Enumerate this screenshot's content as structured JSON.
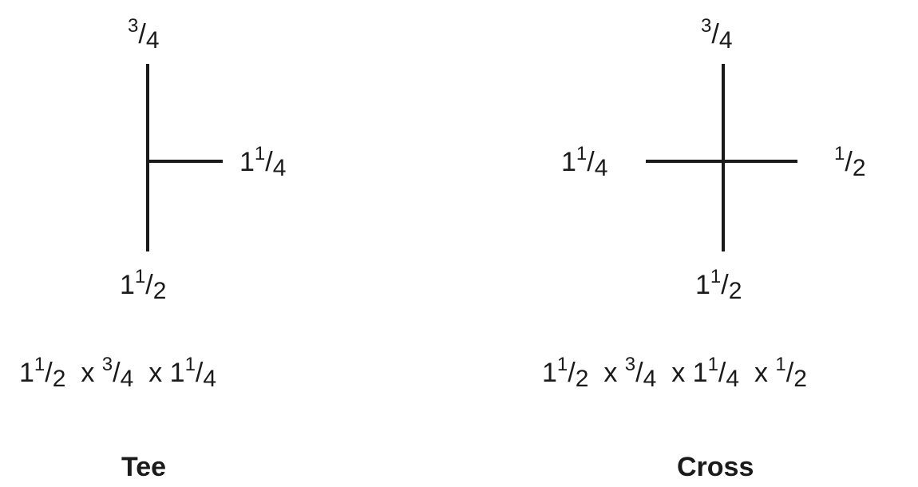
{
  "tee": {
    "top_label": {
      "num": "3",
      "den": "4"
    },
    "right_label": {
      "whole": "1",
      "num": "1",
      "den": "4"
    },
    "bottom_label": {
      "whole": "1",
      "num": "1",
      "den": "2"
    },
    "size_spec": [
      {
        "whole": "1",
        "num": "1",
        "den": "2"
      },
      {
        "whole": "",
        "num": "3",
        "den": "4"
      },
      {
        "whole": "1",
        "num": "1",
        "den": "4"
      }
    ],
    "times": "x",
    "caption": "Tee"
  },
  "cross": {
    "top_label": {
      "num": "3",
      "den": "4"
    },
    "left_label": {
      "whole": "1",
      "num": "1",
      "den": "4"
    },
    "right_label": {
      "num": "1",
      "den": "2"
    },
    "bottom_label": {
      "whole": "1",
      "num": "1",
      "den": "2"
    },
    "size_spec": [
      {
        "whole": "1",
        "num": "1",
        "den": "2"
      },
      {
        "whole": "",
        "num": "3",
        "den": "4"
      },
      {
        "whole": "1",
        "num": "1",
        "den": "4"
      },
      {
        "whole": "",
        "num": "1",
        "den": "2"
      }
    ],
    "times": "x",
    "caption": "Cross"
  }
}
